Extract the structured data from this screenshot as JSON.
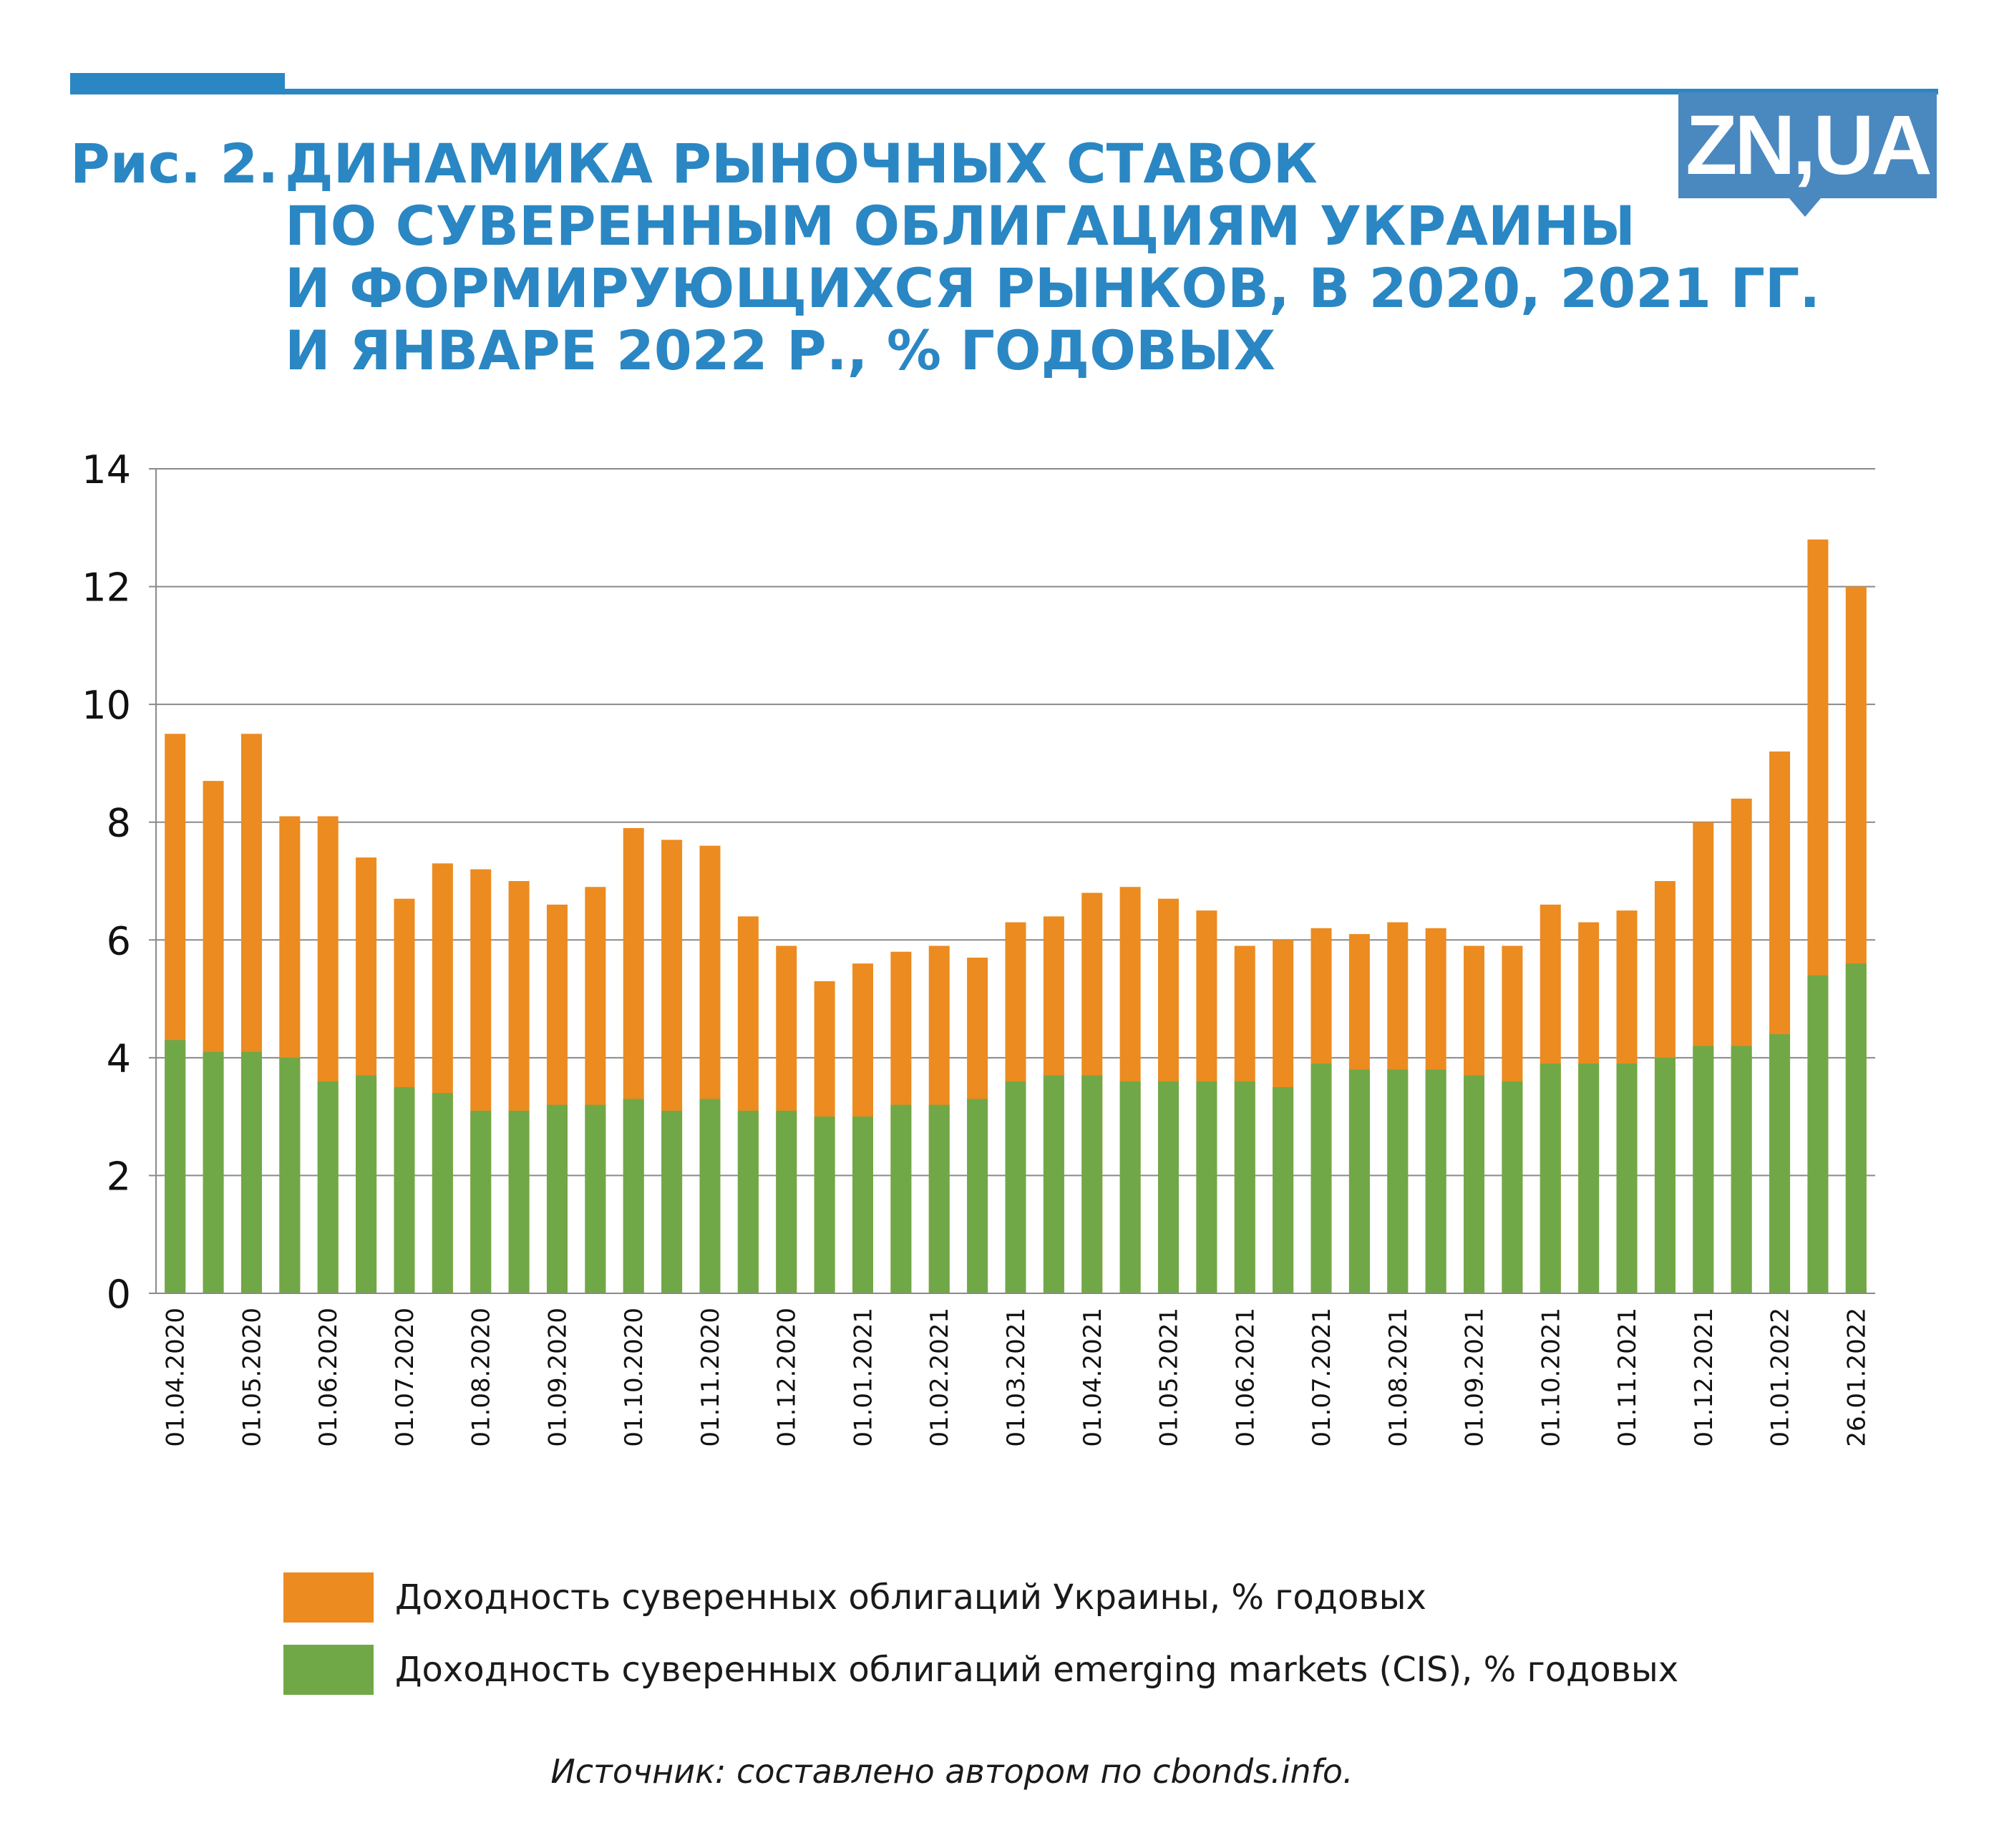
{
  "header": {
    "title_prefix": "Рис. 2.",
    "title_lines": [
      "ДИНАМИКА РЫНОЧНЫХ СТАВОК",
      "ПО СУВЕРЕННЫМ ОБЛИГАЦИЯМ УКРАИНЫ",
      "И ФОРМИРУЮЩИХСЯ РЫНКОВ, В 2020, 2021 ГГ.",
      "И ЯНВАРЕ 2022 Р., % ГОДОВЫХ"
    ],
    "logo_text": "ZN,UA"
  },
  "colors": {
    "title": "#2a87c3",
    "ukraine": "#ec8b20",
    "cis": "#70a847",
    "grid": "#8a8a8a"
  },
  "chart_data": {
    "type": "bar",
    "mode": "overlay",
    "title": "ДИНАМИКА РЫНОЧНЫХ СТАВОК ПО СУВЕРЕННЫМ ОБЛИГАЦИЯМ УКРАИНЫ И ФОРМИРУЮЩИХСЯ РЫНКОВ, В 2020, 2021 ГГ. И ЯНВАРЕ 2022 Р., % ГОДОВЫХ",
    "xlabel": "",
    "ylabel": "",
    "ylim": [
      0,
      14
    ],
    "yticks": [
      0,
      2,
      4,
      6,
      8,
      10,
      12,
      14
    ],
    "grid": true,
    "legend_position": "bottom",
    "categories": [
      "01.04.2020",
      "",
      "01.05.2020",
      "",
      "01.06.2020",
      "",
      "01.07.2020",
      "",
      "01.08.2020",
      "",
      "01.09.2020",
      "",
      "01.10.2020",
      "",
      "01.11.2020",
      "",
      "01.12.2020",
      "",
      "01.01.2021",
      "",
      "01.02.2021",
      "",
      "01.03.2021",
      "",
      "01.04.2021",
      "",
      "01.05.2021",
      "",
      "01.06.2021",
      "",
      "01.07.2021",
      "",
      "01.08.2021",
      "",
      "01.09.2021",
      "",
      "01.10.2021",
      "",
      "01.11.2021",
      "",
      "01.12.2021",
      "",
      "01.01.2022",
      "",
      "26.01.2022"
    ],
    "series": [
      {
        "name": "Доходность суверенных облигаций Украины, % годовых",
        "color": "#ec8b20",
        "values": [
          9.5,
          8.7,
          9.5,
          8.1,
          8.1,
          7.4,
          6.7,
          7.3,
          7.2,
          7.0,
          6.6,
          6.9,
          7.9,
          7.7,
          7.6,
          6.4,
          5.9,
          5.3,
          5.6,
          5.8,
          5.9,
          5.7,
          6.3,
          6.4,
          6.8,
          6.9,
          6.7,
          6.5,
          5.9,
          6.0,
          6.2,
          6.1,
          6.3,
          6.2,
          5.9,
          5.9,
          6.6,
          6.3,
          6.5,
          7.0,
          8.0,
          8.4,
          9.2,
          12.8,
          12.0
        ]
      },
      {
        "name": "Доходность суверенных облигаций emerging markets (CIS), % годовых",
        "color": "#70a847",
        "values": [
          4.3,
          4.1,
          4.1,
          4.0,
          3.6,
          3.7,
          3.5,
          3.4,
          3.1,
          3.1,
          3.2,
          3.2,
          3.3,
          3.1,
          3.3,
          3.1,
          3.1,
          3.0,
          3.0,
          3.2,
          3.2,
          3.3,
          3.6,
          3.7,
          3.7,
          3.6,
          3.6,
          3.6,
          3.6,
          3.5,
          3.9,
          3.8,
          3.8,
          3.8,
          3.7,
          3.6,
          3.9,
          3.9,
          3.9,
          4.0,
          4.2,
          4.2,
          4.4,
          5.4,
          5.6
        ]
      }
    ]
  },
  "source": "Источник: составлено автором по cbonds.info."
}
